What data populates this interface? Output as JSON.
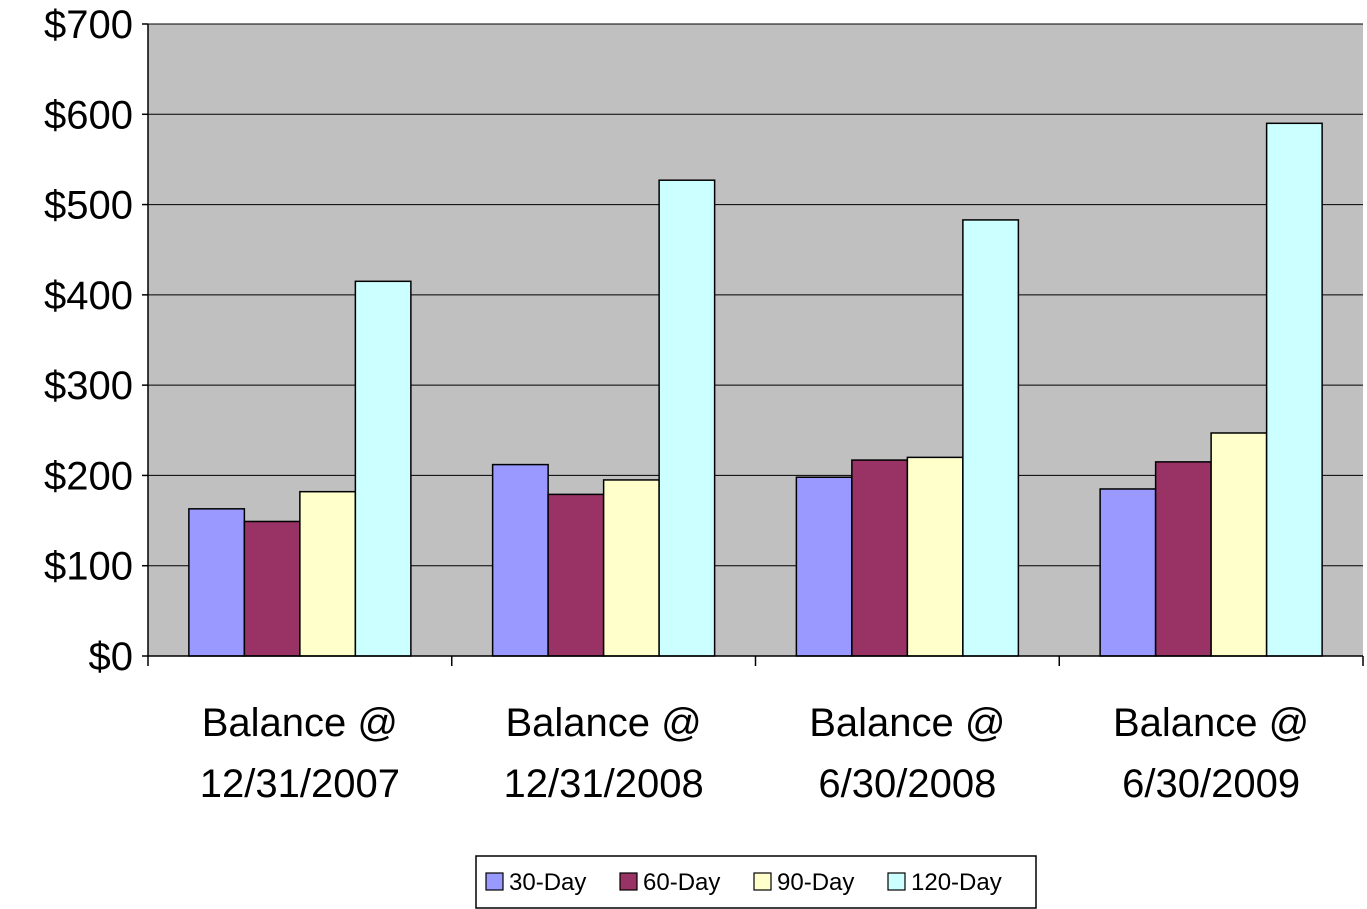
{
  "chart_data": {
    "type": "bar",
    "title": "",
    "xlabel": "",
    "ylabel": "",
    "categories": [
      [
        "Balance @",
        "12/31/2007"
      ],
      [
        "Balance @",
        "12/31/2008"
      ],
      [
        "Balance @",
        "6/30/2008"
      ],
      [
        "Balance @",
        "6/30/2009"
      ]
    ],
    "series": [
      {
        "name": "30-Day",
        "color": "#9999FF",
        "values": [
          163,
          212,
          198,
          185
        ]
      },
      {
        "name": "60-Day",
        "color": "#993366",
        "values": [
          149,
          179,
          217,
          215
        ]
      },
      {
        "name": "90-Day",
        "color": "#FFFFCC",
        "values": [
          182,
          195,
          220,
          247
        ]
      },
      {
        "name": "120-Day",
        "color": "#CCFFFF",
        "values": [
          415,
          527,
          483,
          590
        ]
      }
    ],
    "ylim": [
      0,
      700
    ],
    "y_ticks": [
      0,
      100,
      200,
      300,
      400,
      500,
      600,
      700
    ],
    "y_tick_labels": [
      "$0",
      "$100",
      "$200",
      "$300",
      "$400",
      "$500",
      "$600",
      "$700"
    ],
    "grid": true,
    "plot_background": "#C0C0C0",
    "legend_position": "bottom"
  }
}
